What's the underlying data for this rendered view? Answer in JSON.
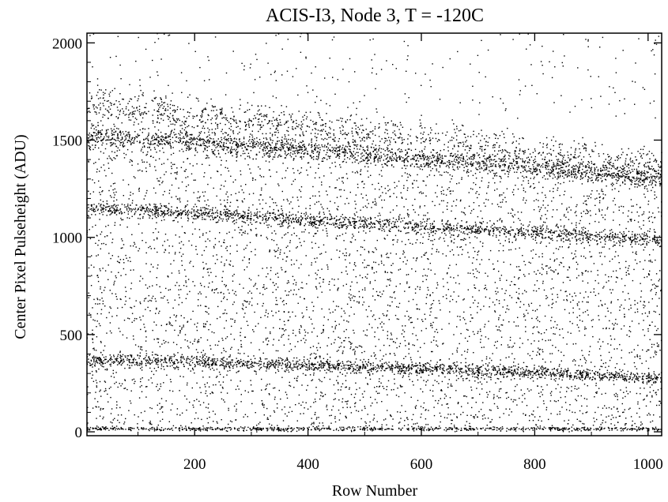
{
  "chart_data": {
    "type": "scatter",
    "title": "ACIS-I3, Node 3, T = -120C",
    "xlabel": "Row Number",
    "ylabel": "Center Pixel Pulseheight (ADU)",
    "xlim": [
      10,
      1024
    ],
    "ylim": [
      -20,
      2050
    ],
    "xticks": [
      200,
      400,
      600,
      800,
      1000
    ],
    "yticks": [
      0,
      500,
      1000,
      1500,
      2000
    ],
    "xtick_labels": [
      "200",
      "400",
      "600",
      "800",
      "1000"
    ],
    "ytick_labels": [
      "0",
      "500",
      "1000",
      "1500",
      "2000"
    ],
    "grid": false,
    "legend": false,
    "marker_color": "#000000",
    "series": [
      {
        "x": [
          10,
          200,
          400,
          600,
          800,
          1024
        ],
        "y": [
          1515,
          1490,
          1450,
          1400,
          1365,
          1300
        ]
      },
      {
        "x": [
          10,
          200,
          400,
          600,
          800,
          1024
        ],
        "y": [
          1150,
          1125,
          1090,
          1055,
          1025,
          985
        ]
      },
      {
        "x": [
          10,
          200,
          400,
          600,
          800,
          1024
        ],
        "y": [
          370,
          360,
          345,
          325,
          305,
          270
        ]
      },
      {
        "x": [
          10,
          200,
          400,
          600,
          800,
          1024
        ],
        "y": [
          1690,
          1640,
          1580,
          1520,
          1450,
          1380
        ]
      },
      {
        "x": [
          10,
          1024
        ],
        "y": [
          15,
          15
        ]
      }
    ]
  }
}
